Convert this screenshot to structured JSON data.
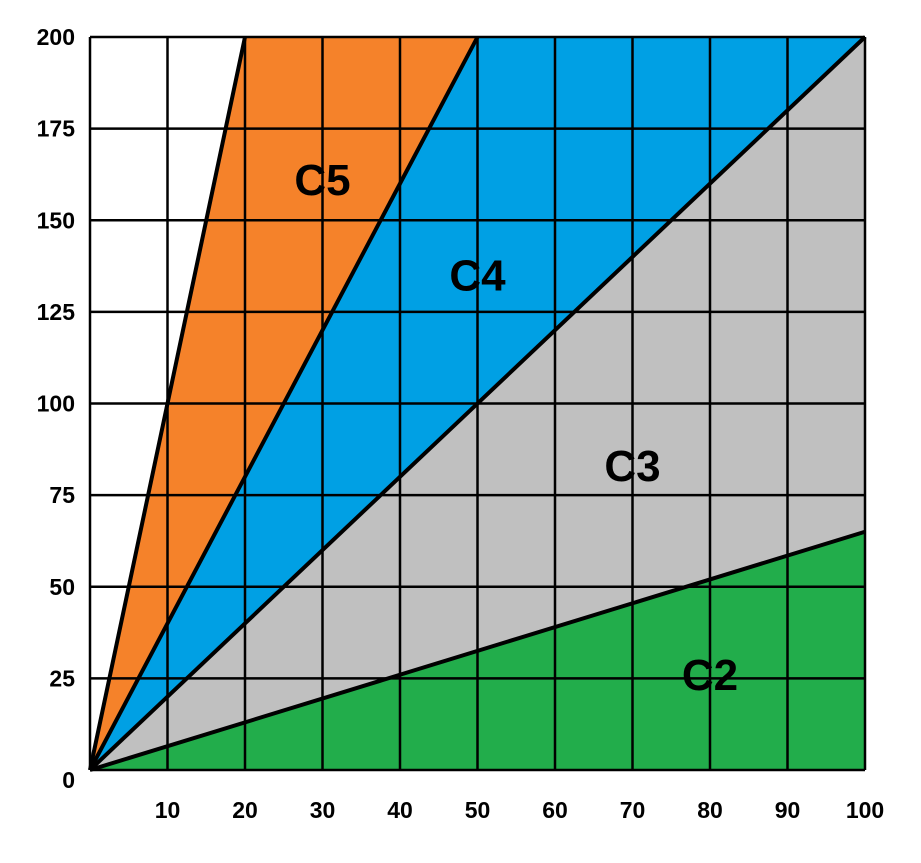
{
  "chart_data": {
    "type": "area",
    "title": "",
    "xlabel": "",
    "ylabel": "",
    "xlim": [
      0,
      100
    ],
    "ylim": [
      0,
      200
    ],
    "x_ticks": [
      10,
      20,
      30,
      40,
      50,
      60,
      70,
      80,
      90,
      100
    ],
    "y_ticks": [
      0,
      25,
      50,
      75,
      100,
      125,
      150,
      175,
      200
    ],
    "grid": true,
    "boundary_lines": [
      {
        "x": [
          0,
          20
        ],
        "y": [
          0,
          200
        ]
      },
      {
        "x": [
          0,
          50
        ],
        "y": [
          0,
          200
        ]
      },
      {
        "x": [
          0,
          100
        ],
        "y": [
          0,
          200
        ]
      },
      {
        "x": [
          0,
          100
        ],
        "y": [
          0,
          65
        ]
      }
    ],
    "regions": [
      {
        "label": "C5",
        "color": "#f5822a",
        "polygon": [
          [
            0,
            0
          ],
          [
            20,
            200
          ],
          [
            50,
            200
          ]
        ],
        "label_at": [
          30,
          160
        ]
      },
      {
        "label": "C4",
        "color": "#00a0e4",
        "polygon": [
          [
            0,
            0
          ],
          [
            50,
            200
          ],
          [
            100,
            200
          ]
        ],
        "label_at": [
          50,
          134
        ]
      },
      {
        "label": "C3",
        "color": "#c0c0c0",
        "polygon": [
          [
            0,
            0
          ],
          [
            100,
            200
          ],
          [
            100,
            65
          ]
        ],
        "label_at": [
          70,
          82
        ]
      },
      {
        "label": "C2",
        "color": "#22ad4b",
        "polygon": [
          [
            0,
            0
          ],
          [
            100,
            65
          ],
          [
            100,
            0
          ]
        ],
        "label_at": [
          80,
          25
        ]
      }
    ]
  }
}
